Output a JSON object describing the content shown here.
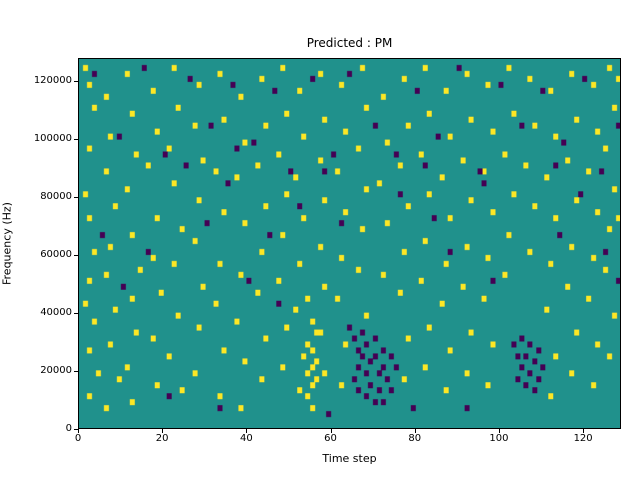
{
  "chart_data": {
    "type": "heatmap",
    "title": "Predicted : PM",
    "xlabel": "Time step",
    "ylabel": "Frequency (Hz)",
    "x_range": [
      0,
      129
    ],
    "y_range": [
      0,
      128000
    ],
    "x_ticks": [
      0,
      20,
      40,
      60,
      80,
      100,
      120
    ],
    "y_ticks": [
      0,
      20000,
      40000,
      60000,
      80000,
      100000,
      120000
    ],
    "grid": {
      "n_time_steps": 129,
      "n_freq_bins": 64,
      "freq_bin_hz": 2000
    },
    "colormap": "viridis",
    "legend": "none",
    "colors": {
      "background_mid": "#20918c",
      "high": "#fde725",
      "low": "#440154"
    },
    "cells": {
      "high_yellow": [
        [
          1,
          62
        ],
        [
          2,
          59
        ],
        [
          3,
          55
        ],
        [
          2,
          48
        ],
        [
          1,
          40
        ],
        [
          2,
          36
        ],
        [
          3,
          30
        ],
        [
          2,
          25
        ],
        [
          1,
          21
        ],
        [
          3,
          18
        ],
        [
          2,
          13
        ],
        [
          4,
          9
        ],
        [
          2,
          5
        ],
        [
          6,
          57
        ],
        [
          7,
          50
        ],
        [
          6,
          44
        ],
        [
          8,
          38
        ],
        [
          7,
          31
        ],
        [
          6,
          26
        ],
        [
          8,
          20
        ],
        [
          7,
          14
        ],
        [
          9,
          8
        ],
        [
          6,
          3
        ],
        [
          11,
          61
        ],
        [
          12,
          54
        ],
        [
          13,
          47
        ],
        [
          11,
          41
        ],
        [
          12,
          33
        ],
        [
          14,
          27
        ],
        [
          12,
          22
        ],
        [
          13,
          16
        ],
        [
          11,
          10
        ],
        [
          12,
          4
        ],
        [
          17,
          58
        ],
        [
          18,
          51
        ],
        [
          16,
          45
        ],
        [
          18,
          36
        ],
        [
          17,
          29
        ],
        [
          19,
          23
        ],
        [
          17,
          15
        ],
        [
          18,
          7
        ],
        [
          22,
          62
        ],
        [
          23,
          55
        ],
        [
          21,
          48
        ],
        [
          22,
          42
        ],
        [
          24,
          34
        ],
        [
          22,
          28
        ],
        [
          23,
          19
        ],
        [
          21,
          12
        ],
        [
          24,
          6
        ],
        [
          28,
          59
        ],
        [
          27,
          52
        ],
        [
          29,
          46
        ],
        [
          28,
          39
        ],
        [
          27,
          32
        ],
        [
          29,
          24
        ],
        [
          28,
          17
        ],
        [
          27,
          9
        ],
        [
          33,
          61
        ],
        [
          34,
          53
        ],
        [
          32,
          44
        ],
        [
          34,
          37
        ],
        [
          33,
          28
        ],
        [
          32,
          21
        ],
        [
          34,
          13
        ],
        [
          33,
          5
        ],
        [
          38,
          57
        ],
        [
          39,
          49
        ],
        [
          37,
          43
        ],
        [
          39,
          35
        ],
        [
          38,
          26
        ],
        [
          37,
          18
        ],
        [
          39,
          11
        ],
        [
          38,
          3
        ],
        [
          43,
          60
        ],
        [
          44,
          52
        ],
        [
          42,
          45
        ],
        [
          44,
          38
        ],
        [
          43,
          30
        ],
        [
          42,
          23
        ],
        [
          44,
          15
        ],
        [
          43,
          8
        ],
        [
          48,
          62
        ],
        [
          49,
          54
        ],
        [
          47,
          47
        ],
        [
          49,
          40
        ],
        [
          48,
          33
        ],
        [
          47,
          25
        ],
        [
          49,
          17
        ],
        [
          48,
          10
        ],
        [
          52,
          58
        ],
        [
          53,
          50
        ],
        [
          51,
          43
        ],
        [
          53,
          36
        ],
        [
          52,
          28
        ],
        [
          51,
          20
        ],
        [
          53,
          12
        ],
        [
          52,
          6
        ],
        [
          54,
          22
        ],
        [
          55,
          18
        ],
        [
          54,
          14
        ],
        [
          55,
          10
        ],
        [
          56,
          8
        ],
        [
          54,
          5
        ],
        [
          55,
          3
        ],
        [
          56,
          16
        ],
        [
          55,
          13
        ],
        [
          56,
          11
        ],
        [
          54,
          9
        ],
        [
          55,
          7
        ],
        [
          57,
          61
        ],
        [
          58,
          53
        ],
        [
          57,
          46
        ],
        [
          58,
          39
        ],
        [
          57,
          31
        ],
        [
          58,
          24
        ],
        [
          57,
          16
        ],
        [
          58,
          9
        ],
        [
          62,
          59
        ],
        [
          63,
          51
        ],
        [
          61,
          44
        ],
        [
          63,
          37
        ],
        [
          62,
          29
        ],
        [
          61,
          22
        ],
        [
          63,
          14
        ],
        [
          62,
          7
        ],
        [
          67,
          62
        ],
        [
          68,
          55
        ],
        [
          66,
          48
        ],
        [
          68,
          41
        ],
        [
          67,
          34
        ],
        [
          66,
          27
        ],
        [
          68,
          19
        ],
        [
          72,
          57
        ],
        [
          73,
          49
        ],
        [
          71,
          42
        ],
        [
          73,
          35
        ],
        [
          72,
          26
        ],
        [
          77,
          60
        ],
        [
          78,
          52
        ],
        [
          76,
          45
        ],
        [
          78,
          38
        ],
        [
          77,
          30
        ],
        [
          76,
          23
        ],
        [
          78,
          15
        ],
        [
          77,
          8
        ],
        [
          82,
          62
        ],
        [
          83,
          54
        ],
        [
          81,
          47
        ],
        [
          83,
          40
        ],
        [
          82,
          32
        ],
        [
          81,
          25
        ],
        [
          83,
          17
        ],
        [
          82,
          10
        ],
        [
          87,
          58
        ],
        [
          88,
          50
        ],
        [
          86,
          43
        ],
        [
          88,
          36
        ],
        [
          87,
          28
        ],
        [
          86,
          21
        ],
        [
          88,
          13
        ],
        [
          87,
          6
        ],
        [
          92,
          61
        ],
        [
          93,
          53
        ],
        [
          91,
          46
        ],
        [
          93,
          39
        ],
        [
          92,
          31
        ],
        [
          91,
          24
        ],
        [
          93,
          16
        ],
        [
          92,
          9
        ],
        [
          97,
          59
        ],
        [
          98,
          51
        ],
        [
          96,
          44
        ],
        [
          98,
          37
        ],
        [
          97,
          29
        ],
        [
          96,
          22
        ],
        [
          98,
          14
        ],
        [
          97,
          7
        ],
        [
          102,
          62
        ],
        [
          103,
          54
        ],
        [
          101,
          47
        ],
        [
          103,
          40
        ],
        [
          102,
          33
        ],
        [
          101,
          26
        ],
        [
          107,
          60
        ],
        [
          108,
          52
        ],
        [
          106,
          45
        ],
        [
          108,
          38
        ],
        [
          107,
          30
        ],
        [
          112,
          58
        ],
        [
          113,
          50
        ],
        [
          111,
          43
        ],
        [
          113,
          36
        ],
        [
          112,
          28
        ],
        [
          111,
          20
        ],
        [
          113,
          12
        ],
        [
          112,
          5
        ],
        [
          117,
          61
        ],
        [
          118,
          53
        ],
        [
          116,
          46
        ],
        [
          118,
          39
        ],
        [
          117,
          31
        ],
        [
          116,
          24
        ],
        [
          118,
          16
        ],
        [
          117,
          9
        ],
        [
          122,
          59
        ],
        [
          123,
          51
        ],
        [
          121,
          44
        ],
        [
          123,
          37
        ],
        [
          122,
          29
        ],
        [
          121,
          22
        ],
        [
          123,
          14
        ],
        [
          122,
          7
        ],
        [
          126,
          62
        ],
        [
          127,
          55
        ],
        [
          125,
          48
        ],
        [
          127,
          41
        ],
        [
          126,
          34
        ],
        [
          125,
          27
        ],
        [
          127,
          19
        ],
        [
          126,
          12
        ],
        [
          128,
          60
        ],
        [
          128,
          36
        ]
      ],
      "low_purple": [
        [
          3,
          61
        ],
        [
          15,
          62
        ],
        [
          26,
          60
        ],
        [
          36,
          59
        ],
        [
          46,
          58
        ],
        [
          55,
          60
        ],
        [
          64,
          61
        ],
        [
          80,
          58
        ],
        [
          90,
          62
        ],
        [
          100,
          59
        ],
        [
          110,
          58
        ],
        [
          120,
          60
        ],
        [
          9,
          50
        ],
        [
          20,
          47
        ],
        [
          31,
          52
        ],
        [
          41,
          49
        ],
        [
          50,
          44
        ],
        [
          60,
          47
        ],
        [
          70,
          52
        ],
        [
          75,
          47
        ],
        [
          85,
          50
        ],
        [
          95,
          44
        ],
        [
          105,
          52
        ],
        [
          115,
          49
        ],
        [
          124,
          44
        ],
        [
          128,
          52
        ],
        [
          30,
          35
        ],
        [
          35,
          42
        ],
        [
          40,
          25
        ],
        [
          45,
          33
        ],
        [
          58,
          44
        ],
        [
          62,
          35
        ],
        [
          76,
          40
        ],
        [
          84,
          36
        ],
        [
          96,
          42
        ],
        [
          114,
          33
        ],
        [
          119,
          40
        ],
        [
          25,
          45
        ],
        [
          98,
          25
        ],
        [
          88,
          30
        ],
        [
          52,
          38
        ],
        [
          47,
          21
        ],
        [
          33,
          3
        ],
        [
          79,
          3
        ],
        [
          92,
          3
        ],
        [
          59,
          2
        ],
        [
          113,
          45
        ],
        [
          16,
          30
        ],
        [
          21,
          5
        ],
        [
          37,
          48
        ],
        [
          82,
          45
        ],
        [
          125,
          30
        ],
        [
          128,
          25
        ],
        [
          5,
          33
        ],
        [
          10,
          24
        ],
        [
          64,
          17
        ],
        [
          65,
          15
        ],
        [
          65,
          8
        ],
        [
          66,
          13
        ],
        [
          66,
          10
        ],
        [
          66,
          6
        ],
        [
          67,
          16
        ],
        [
          67,
          12
        ],
        [
          68,
          14
        ],
        [
          68,
          9
        ],
        [
          68,
          5
        ],
        [
          69,
          11
        ],
        [
          69,
          7
        ],
        [
          70,
          15
        ],
        [
          70,
          12
        ],
        [
          70,
          4
        ],
        [
          71,
          9
        ],
        [
          71,
          6
        ],
        [
          72,
          13
        ],
        [
          72,
          10
        ],
        [
          72,
          4
        ],
        [
          73,
          8
        ],
        [
          74,
          12
        ],
        [
          74,
          6
        ],
        [
          75,
          10
        ],
        [
          103,
          14
        ],
        [
          104,
          12
        ],
        [
          104,
          8
        ],
        [
          105,
          15
        ],
        [
          105,
          10
        ],
        [
          106,
          12
        ],
        [
          106,
          7
        ],
        [
          107,
          14
        ],
        [
          107,
          9
        ],
        [
          108,
          11
        ],
        [
          108,
          6
        ],
        [
          109,
          13
        ],
        [
          109,
          8
        ],
        [
          110,
          10
        ]
      ]
    }
  }
}
